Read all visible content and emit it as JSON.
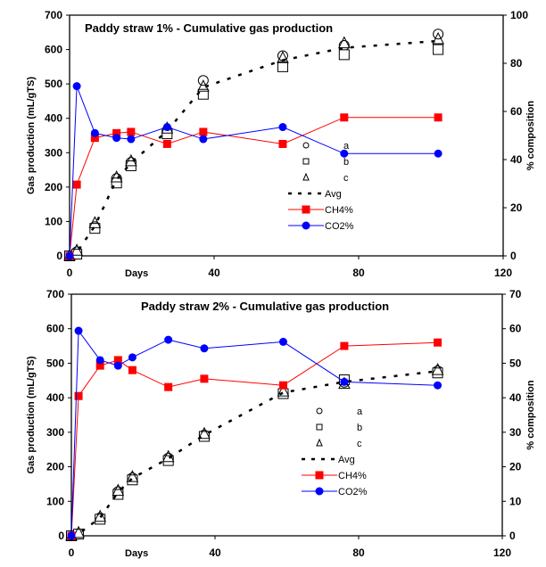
{
  "chart_data": [
    {
      "type": "line",
      "title": "Paddy straw 1%  - Cumulative gas production",
      "xlabel": "Days",
      "ylabel": "Gas production (mL/gTS)",
      "y2label": "% composition",
      "xlim": [
        0,
        120
      ],
      "ylim": [
        0,
        700
      ],
      "y2lim": [
        0,
        100
      ],
      "xticks": [
        0,
        40,
        80,
        120
      ],
      "yticks": [
        0,
        100,
        200,
        300,
        400,
        500,
        600,
        700
      ],
      "y2ticks": [
        0,
        20,
        40,
        60,
        80,
        100
      ],
      "legend_position": "center-right",
      "x": [
        0,
        2,
        7,
        13,
        17,
        27,
        37,
        59,
        76,
        102
      ],
      "series": [
        {
          "name": "a",
          "axis": "left",
          "marker": "circle",
          "values": [
            0,
            12,
            85,
            225,
            272,
            365,
            510,
            582,
            612,
            645
          ]
        },
        {
          "name": "b",
          "axis": "left",
          "marker": "square",
          "values": [
            0,
            5,
            80,
            212,
            262,
            355,
            470,
            550,
            585,
            600
          ]
        },
        {
          "name": "c",
          "axis": "left",
          "marker": "triangle",
          "values": [
            0,
            15,
            95,
            228,
            275,
            370,
            492,
            575,
            618,
            630
          ]
        },
        {
          "name": "Avg",
          "axis": "left",
          "style": "dashed",
          "values": [
            0,
            10,
            87,
            222,
            270,
            363,
            490,
            569,
            605,
            625
          ]
        },
        {
          "name": "CH4%",
          "axis": "right",
          "color": "#ff0000",
          "marker": "square",
          "values": [
            0,
            29.6,
            49,
            51,
            51.5,
            46.5,
            51.5,
            46.5,
            57.5,
            57.5
          ]
        },
        {
          "name": "CO2%",
          "axis": "right",
          "color": "#0000ff",
          "marker": "circle",
          "values": [
            0,
            70.5,
            51,
            49,
            48.5,
            53.5,
            48.5,
            53.5,
            42.5,
            42.5
          ]
        }
      ]
    },
    {
      "type": "line",
      "title": "Paddy straw 2% - Cumulative gas production",
      "xlabel": "Days",
      "ylabel": "Gas production (mL/gTS)",
      "y2label": "% composition",
      "xlim": [
        0,
        120
      ],
      "ylim": [
        0,
        700
      ],
      "y2lim": [
        0,
        70
      ],
      "xticks": [
        0,
        40,
        80,
        120
      ],
      "yticks": [
        0,
        100,
        200,
        300,
        400,
        500,
        600,
        700
      ],
      "y2ticks": [
        0,
        10,
        20,
        30,
        40,
        50,
        60,
        70
      ],
      "legend_position": "center-right",
      "x": [
        0,
        2,
        8,
        13,
        17,
        27,
        37,
        59,
        76,
        102
      ],
      "series": [
        {
          "name": "a",
          "axis": "left",
          "marker": "circle",
          "values": [
            0,
            5,
            52,
            128,
            168,
            225,
            292,
            415,
            445,
            478
          ]
        },
        {
          "name": "b",
          "axis": "left",
          "marker": "square",
          "values": [
            0,
            5,
            48,
            120,
            162,
            218,
            288,
            412,
            452,
            472
          ]
        },
        {
          "name": "c",
          "axis": "left",
          "marker": "triangle",
          "values": [
            0,
            8,
            55,
            130,
            170,
            228,
            295,
            418,
            440,
            480
          ]
        },
        {
          "name": "Avg",
          "axis": "left",
          "style": "dashed",
          "values": [
            0,
            6,
            52,
            126,
            167,
            224,
            292,
            415,
            446,
            477
          ]
        },
        {
          "name": "CH4%",
          "axis": "right",
          "color": "#ff0000",
          "marker": "square",
          "values": [
            0,
            40.5,
            49.3,
            50.9,
            48,
            43.1,
            45.5,
            43.6,
            55,
            56
          ]
        },
        {
          "name": "CO2%",
          "axis": "right",
          "color": "#0000ff",
          "marker": "circle",
          "values": [
            0,
            59.4,
            50.9,
            49.3,
            51.7,
            56.8,
            54.3,
            56.2,
            44.6,
            43.6
          ]
        }
      ]
    }
  ]
}
